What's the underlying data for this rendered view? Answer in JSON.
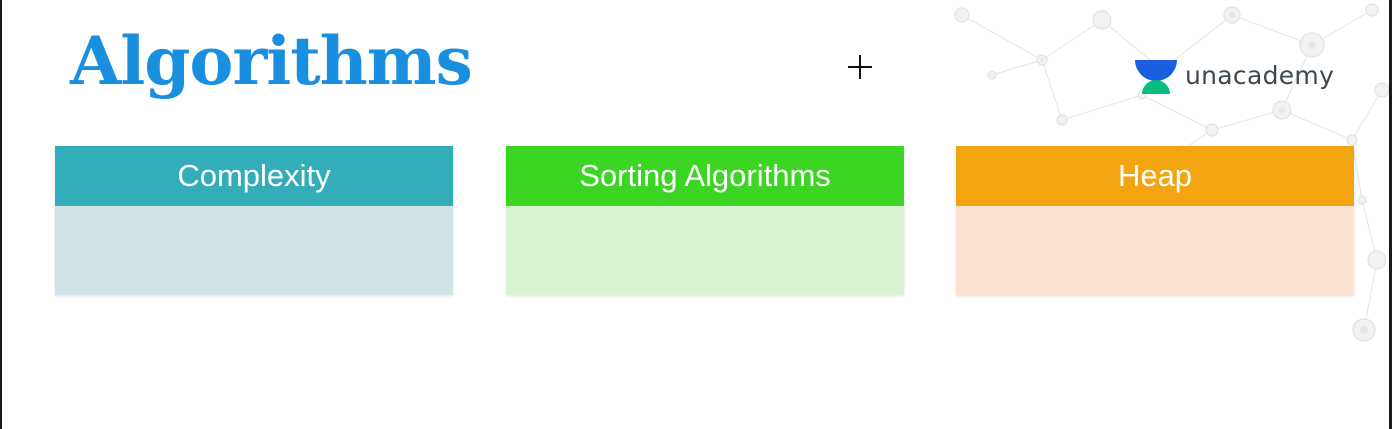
{
  "slide": {
    "title": "Algorithms",
    "title_color": "#1a8fe0"
  },
  "brand": {
    "name": "unacademy",
    "logo_icon": "unacademy-logo-icon",
    "text_color": "#3c4852",
    "logo_colors": {
      "cap": "#08bd80",
      "bowl": "#1a5fe0"
    }
  },
  "cursor": {
    "icon": "crosshair-cursor-icon"
  },
  "cards": [
    {
      "label": "Complexity",
      "header_color": "#33adb9",
      "body_color": "#d1e3e7"
    },
    {
      "label": "Sorting Algorithms",
      "header_color": "#3cd523",
      "body_color": "#d9f2d2"
    },
    {
      "label": "Heap",
      "header_color": "#f2a411",
      "body_color": "#fbe3d3"
    }
  ]
}
